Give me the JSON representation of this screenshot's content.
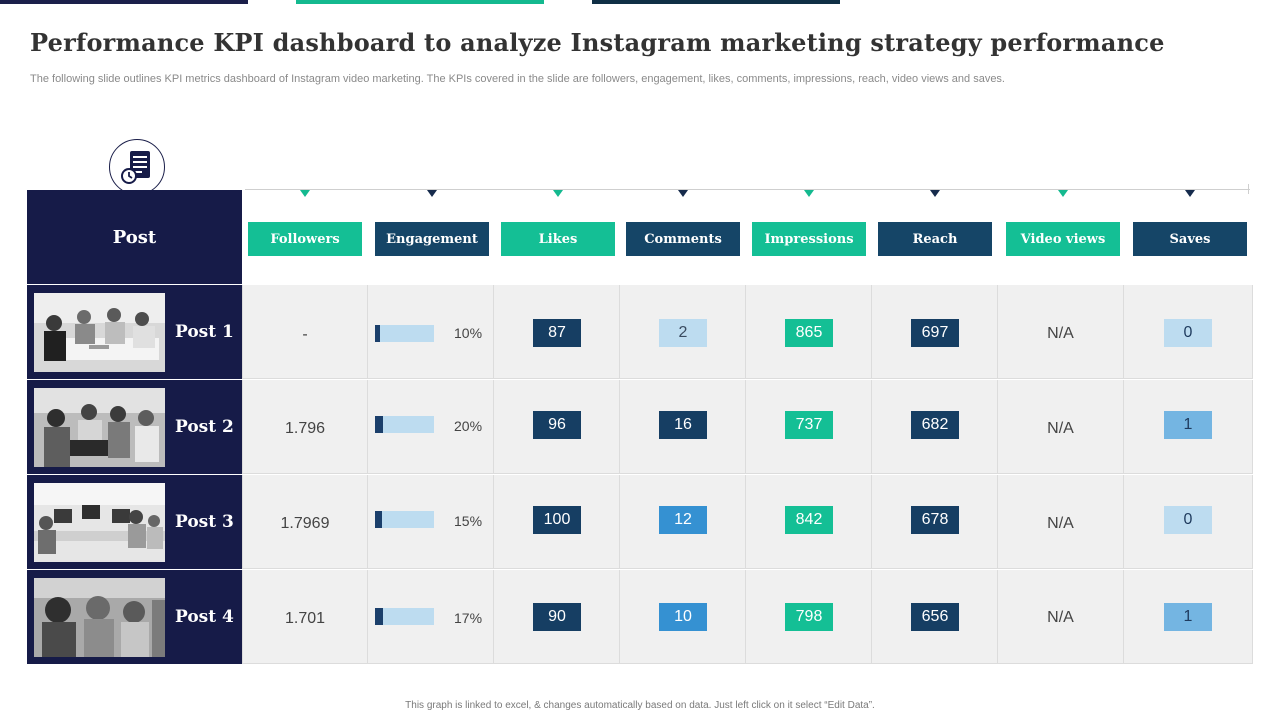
{
  "header": {
    "title": "Performance KPI dashboard to analyze Instagram marketing strategy performance",
    "subtitle": "The following slide outlines KPI metrics dashboard of Instagram video marketing. The KPIs covered in the slide are followers, engagement, likes, comments, impressions, reach, video views and saves."
  },
  "table": {
    "post_header": "Post",
    "columns": [
      "Followers",
      "Engagement",
      "Likes",
      "Comments",
      "Impressions",
      "Reach",
      "Video views",
      "Saves"
    ],
    "rows": [
      {
        "post": "Post 1",
        "followers": "-",
        "engagement": "10%",
        "engagement_value": 10,
        "likes": "87",
        "comments": "2",
        "impressions": "865",
        "reach": "697",
        "video_views": "N/A",
        "saves": "0"
      },
      {
        "post": "Post 2",
        "followers": "1.796",
        "engagement": "20%",
        "engagement_value": 20,
        "likes": "96",
        "comments": "16",
        "impressions": "737",
        "reach": "682",
        "video_views": "N/A",
        "saves": "1"
      },
      {
        "post": "Post 3",
        "followers": "1.7969",
        "engagement": "15%",
        "engagement_value": 15,
        "likes": "100",
        "comments": "12",
        "impressions": "842",
        "reach": "678",
        "video_views": "N/A",
        "saves": "0"
      },
      {
        "post": "Post 4",
        "followers": "1.701",
        "engagement": "17%",
        "engagement_value": 17,
        "likes": "90",
        "comments": "10",
        "impressions": "798",
        "reach": "656",
        "video_views": "N/A",
        "saves": "1"
      }
    ]
  },
  "footer": {
    "note": "This graph is linked to excel, & changes automatically based on data. Just left click on it select “Edit Data”."
  },
  "colors": {
    "navy": "#161b48",
    "teal": "#14bf95",
    "dark_blue": "#154567",
    "mid_blue": "#3591d2",
    "light_blue": "#bddcf0"
  },
  "icons": {
    "header_badge": "document-clock-icon"
  }
}
